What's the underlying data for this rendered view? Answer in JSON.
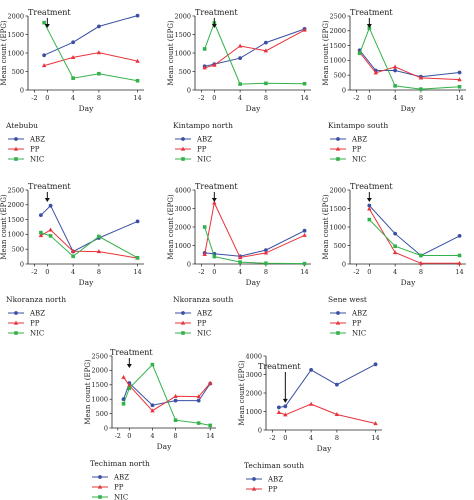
{
  "colors": {
    "ABZ": "#3a4fa3",
    "PP": "#e8333a",
    "NIC": "#33b24a",
    "axis": "#222222"
  },
  "chart_data": [
    {
      "type": "line",
      "site": "Atebubu",
      "annotation": "Treatment",
      "treat_x": 0,
      "xlabel": "Day",
      "ylabel": "Mean count (EPG)",
      "xlim": [
        -3,
        15
      ],
      "xticks": [
        -2,
        0,
        4,
        8,
        14
      ],
      "ylim": [
        0,
        2000
      ],
      "yticks": [
        0,
        500,
        1000,
        1500,
        2000
      ],
      "series": [
        {
          "name": "ABZ",
          "x": [
            -0.5,
            4,
            8,
            14
          ],
          "y": [
            940,
            1290,
            1720,
            2010
          ]
        },
        {
          "name": "PP",
          "x": [
            -0.5,
            4,
            8,
            14
          ],
          "y": [
            660,
            880,
            1010,
            780
          ]
        },
        {
          "name": "NIC",
          "x": [
            -0.5,
            4,
            8,
            14
          ],
          "y": [
            1820,
            320,
            440,
            250
          ]
        }
      ]
    },
    {
      "type": "line",
      "site": "Kintampo north",
      "annotation": "Treatment",
      "treat_x": 0,
      "xlabel": "Day",
      "ylabel": "Mean count (EPG)",
      "xlim": [
        -3,
        15
      ],
      "xticks": [
        -2,
        0,
        4,
        8,
        14
      ],
      "ylim": [
        0,
        2000
      ],
      "yticks": [
        0,
        500,
        1000,
        1500,
        2000
      ],
      "series": [
        {
          "name": "ABZ",
          "x": [
            -1.5,
            0,
            4,
            8,
            14
          ],
          "y": [
            640,
            700,
            860,
            1280,
            1650
          ]
        },
        {
          "name": "PP",
          "x": [
            -1.5,
            0,
            4,
            8,
            14
          ],
          "y": [
            600,
            670,
            1190,
            1060,
            1620
          ]
        },
        {
          "name": "NIC",
          "x": [
            -1.5,
            0,
            4,
            8,
            14
          ],
          "y": [
            1110,
            1810,
            160,
            180,
            170
          ]
        }
      ]
    },
    {
      "type": "line",
      "site": "Kintampo south",
      "annotation": "Treatment",
      "treat_x": 0,
      "xlabel": "Day",
      "ylabel": "Mean count (EPG)",
      "xlim": [
        -3,
        15
      ],
      "xticks": [
        -2,
        0,
        4,
        8,
        14
      ],
      "ylim": [
        0,
        2500
      ],
      "yticks": [
        0,
        500,
        1000,
        1500,
        2000,
        2500
      ],
      "series": [
        {
          "name": "ABZ",
          "x": [
            -1.5,
            1,
            4,
            8,
            14
          ],
          "y": [
            1340,
            660,
            660,
            450,
            590
          ]
        },
        {
          "name": "PP",
          "x": [
            -1.5,
            1,
            4,
            8,
            14
          ],
          "y": [
            1270,
            580,
            780,
            410,
            350
          ]
        },
        {
          "name": "NIC",
          "x": [
            -1.5,
            0,
            4,
            8,
            14
          ],
          "y": [
            1240,
            2090,
            140,
            30,
            110
          ]
        }
      ]
    },
    {
      "type": "line",
      "site": "Nkoranza north",
      "annotation": "Treatment",
      "treat_x": 0,
      "xlabel": "Day",
      "ylabel": "Mean count (EPG)",
      "xlim": [
        -3,
        15
      ],
      "xticks": [
        -2,
        0,
        4,
        8,
        14
      ],
      "ylim": [
        0,
        2500
      ],
      "yticks": [
        0,
        500,
        1000,
        1500,
        2000,
        2500
      ],
      "series": [
        {
          "name": "ABZ",
          "x": [
            -1,
            0.5,
            4,
            8,
            14
          ],
          "y": [
            1650,
            1970,
            420,
            880,
            1440
          ]
        },
        {
          "name": "PP",
          "x": [
            -1,
            0.5,
            4,
            8,
            14
          ],
          "y": [
            960,
            1150,
            430,
            420,
            200
          ]
        },
        {
          "name": "NIC",
          "x": [
            -1,
            0.5,
            4,
            8,
            14
          ],
          "y": [
            1060,
            950,
            260,
            930,
            210
          ]
        }
      ]
    },
    {
      "type": "line",
      "site": "Nkoranza south",
      "annotation": "Treatment",
      "treat_x": 0,
      "xlabel": "Day",
      "ylabel": "Mean count (EPG)",
      "xlim": [
        -3,
        15
      ],
      "xticks": [
        -2,
        0,
        4,
        8,
        14
      ],
      "ylim": [
        0,
        4000
      ],
      "yticks": [
        0,
        1000,
        2000,
        3000,
        4000
      ],
      "series": [
        {
          "name": "ABZ",
          "x": [
            -1.5,
            0,
            4,
            8,
            14
          ],
          "y": [
            600,
            550,
            420,
            750,
            1800
          ]
        },
        {
          "name": "PP",
          "x": [
            -1.5,
            0,
            4,
            8,
            14
          ],
          "y": [
            520,
            3300,
            350,
            600,
            1550
          ]
        },
        {
          "name": "NIC",
          "x": [
            -1.5,
            0,
            4,
            8,
            14
          ],
          "y": [
            2000,
            400,
            100,
            40,
            20
          ]
        }
      ]
    },
    {
      "type": "line",
      "site": "Sene west",
      "annotation": "Treatment",
      "treat_x": 0,
      "xlabel": "Day",
      "ylabel": "Mean count (EPG)",
      "xlim": [
        -3,
        15
      ],
      "xticks": [
        -2,
        0,
        4,
        8,
        14
      ],
      "ylim": [
        0,
        2000
      ],
      "yticks": [
        0,
        500,
        1000,
        1500,
        2000
      ],
      "series": [
        {
          "name": "ABZ",
          "x": [
            0,
            4,
            8,
            14
          ],
          "y": [
            1580,
            820,
            230,
            760
          ]
        },
        {
          "name": "PP",
          "x": [
            0,
            4,
            8,
            14
          ],
          "y": [
            1490,
            310,
            20,
            20
          ]
        },
        {
          "name": "NIC",
          "x": [
            0,
            4,
            8,
            14
          ],
          "y": [
            1200,
            480,
            230,
            230
          ]
        }
      ]
    },
    {
      "type": "line",
      "site": "Techiman north",
      "annotation": "Treatment",
      "treat_x": 0,
      "xlabel": "Day",
      "ylabel": "Mean count (EPG)",
      "xlim": [
        -3,
        15
      ],
      "xticks": [
        -2,
        0,
        4,
        8,
        14
      ],
      "ylim": [
        0,
        2500
      ],
      "yticks": [
        0,
        500,
        1000,
        1500,
        2000,
        2500
      ],
      "series": [
        {
          "name": "ABZ",
          "x": [
            -1,
            0,
            4,
            8,
            12,
            14
          ],
          "y": [
            1000,
            1560,
            790,
            950,
            950,
            1540
          ]
        },
        {
          "name": "PP",
          "x": [
            -1,
            0,
            4,
            8,
            12,
            14
          ],
          "y": [
            1760,
            1480,
            600,
            1100,
            1090,
            1560
          ]
        },
        {
          "name": "NIC",
          "x": [
            -1,
            0,
            4,
            8,
            12,
            14
          ],
          "y": [
            840,
            1380,
            2200,
            270,
            170,
            90
          ]
        }
      ]
    },
    {
      "type": "line",
      "site": "Techiman south",
      "annotation": "Treatment",
      "treat_x": 0,
      "xlabel": "Day",
      "ylabel": "Mean count (EPG)",
      "xlim": [
        -3,
        15
      ],
      "xticks": [
        -2,
        0,
        4,
        8,
        14
      ],
      "ylim": [
        0,
        4000
      ],
      "yticks": [
        0,
        1000,
        2000,
        3000,
        4000
      ],
      "series": [
        {
          "name": "ABZ",
          "x": [
            -1,
            0,
            4,
            8,
            14
          ],
          "y": [
            1220,
            1280,
            3250,
            2450,
            3550
          ]
        },
        {
          "name": "PP",
          "x": [
            -1,
            0,
            4,
            8,
            14
          ],
          "y": [
            950,
            820,
            1400,
            840,
            350
          ]
        }
      ]
    }
  ]
}
